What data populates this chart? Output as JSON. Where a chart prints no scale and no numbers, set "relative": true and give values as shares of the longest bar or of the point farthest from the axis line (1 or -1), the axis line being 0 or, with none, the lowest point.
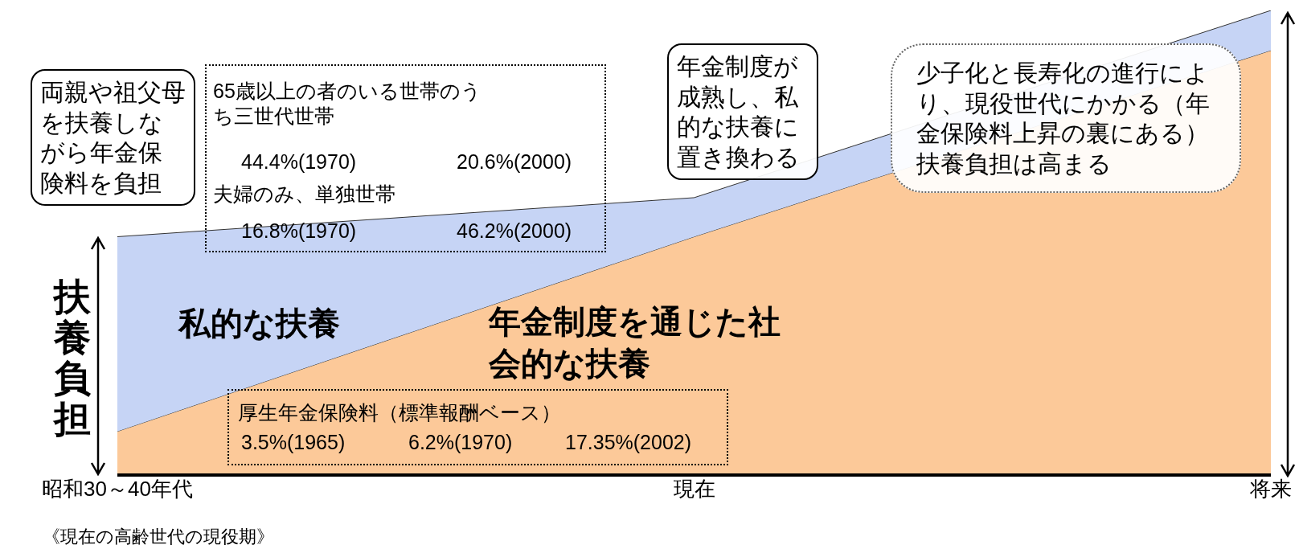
{
  "chart_data": {
    "type": "area",
    "stacked": true,
    "relative": true,
    "ylabel": "扶養負担",
    "categories": [
      "昭和30～40年代",
      "現在",
      "将来"
    ],
    "series": [
      {
        "name": "年金制度を通じた社会的な扶養",
        "color": "#fcc999",
        "values": [
          0.094,
          0.513,
          0.914
        ]
      },
      {
        "name": "私的な扶養",
        "color": "#c6d4f5",
        "values": [
          0.419,
          0.084,
          0.086
        ]
      }
    ],
    "legend": false,
    "grid": false,
    "annotations": [
      "両親や祖父母を扶養しながら年金保険料を負担",
      "65歳以上の者のいる世帯のうち三世代世帯",
      "44.4%(1970)",
      "20.6%(2000)",
      "夫婦のみ、単独世帯",
      "16.8%(1970)",
      "46.2%(2000)",
      "年金制度が成熟し、私的な扶養に置き換わる",
      "少子化と長寿化の進行により、現役世代にかかる（年金保険料上昇の裏にある）扶養負担は高まる",
      "厚生年金保険料（標準報酬ベース）",
      "3.5%(1965)",
      "6.2%(1970)",
      "17.35%(2002)",
      "《現在の高齢世代の現役期》"
    ]
  }
}
